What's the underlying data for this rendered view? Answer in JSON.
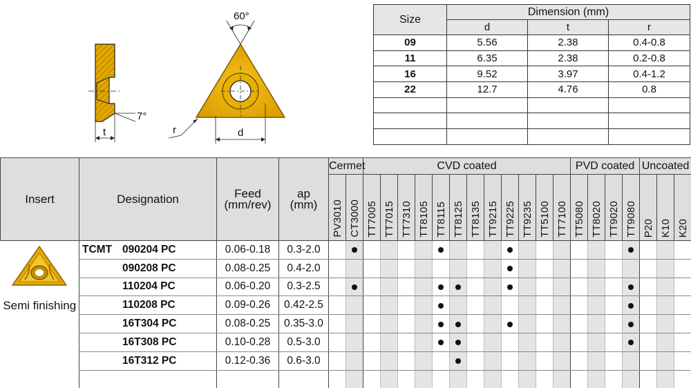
{
  "drawing": {
    "angle_label": "60°",
    "side_angle_label": "7°",
    "t_label": "t",
    "r_label": "r",
    "d_label": "d"
  },
  "dimension_table": {
    "size_header": "Size",
    "dimension_header": "Dimension (mm)",
    "sub_headers": [
      "d",
      "t",
      "r"
    ],
    "rows": [
      {
        "size": "09",
        "d": "5.56",
        "t": "2.38",
        "r": "0.4-0.8"
      },
      {
        "size": "11",
        "d": "6.35",
        "t": "2.38",
        "r": "0.2-0.8"
      },
      {
        "size": "16",
        "d": "9.52",
        "t": "3.97",
        "r": "0.4-1.2"
      },
      {
        "size": "22",
        "d": "12.7",
        "t": "4.76",
        "r": "0.8"
      },
      {
        "size": "",
        "d": "",
        "t": "",
        "r": ""
      },
      {
        "size": "",
        "d": "",
        "t": "",
        "r": ""
      },
      {
        "size": "",
        "d": "",
        "t": "",
        "r": ""
      }
    ]
  },
  "grade_table": {
    "insert_header": "Insert",
    "designation_header": "Designation",
    "feed_header_line1": "Feed",
    "feed_header_line2": "(mm/rev)",
    "ap_header_line1": "ap",
    "ap_header_line2": "(mm)",
    "groups": [
      {
        "name": "Cermet",
        "grades": [
          "PV3010",
          "CT3000"
        ]
      },
      {
        "name": "CVD coated",
        "grades": [
          "TT7005",
          "TT7015",
          "TT7310",
          "TT8105",
          "TT8115",
          "TT8125",
          "TT8135",
          "TT9215",
          "TT9225",
          "TT9235",
          "TT5100",
          "TT7100"
        ]
      },
      {
        "name": "PVD coated",
        "grades": [
          "TT5080",
          "TT8020",
          "TT9020",
          "TT9080"
        ]
      },
      {
        "name": "Uncoated",
        "grades": [
          "P20",
          "K10",
          "K20"
        ]
      }
    ],
    "insert_note": "Semi finishing",
    "series_prefix": "TCMT",
    "rows": [
      {
        "code": "090204 PC",
        "feed": "0.06-0.18",
        "ap": "0.3-2.0",
        "marks": [
          "CT3000",
          "TT8115",
          "TT9225",
          "TT9080"
        ]
      },
      {
        "code": "090208 PC",
        "feed": "0.08-0.25",
        "ap": "0.4-2.0",
        "marks": [
          "TT9225"
        ]
      },
      {
        "code": "110204 PC",
        "feed": "0.06-0.20",
        "ap": "0.3-2.5",
        "marks": [
          "CT3000",
          "TT8115",
          "TT8125",
          "TT9225",
          "TT9080"
        ]
      },
      {
        "code": "110208 PC",
        "feed": "0.09-0.26",
        "ap": "0.42-2.5",
        "marks": [
          "TT8115",
          "TT9080"
        ]
      },
      {
        "code": "16T304 PC",
        "feed": "0.08-0.25",
        "ap": "0.35-3.0",
        "marks": [
          "TT8115",
          "TT8125",
          "TT9225",
          "TT9080"
        ]
      },
      {
        "code": "16T308 PC",
        "feed": "0.10-0.28",
        "ap": "0.5-3.0",
        "marks": [
          "TT8115",
          "TT8125",
          "TT9080"
        ]
      },
      {
        "code": "16T312 PC",
        "feed": "0.12-0.36",
        "ap": "0.6-3.0",
        "marks": [
          "TT8125"
        ]
      },
      {
        "code": "",
        "feed": "",
        "ap": "",
        "marks": []
      },
      {
        "code": "",
        "feed": "",
        "ap": "",
        "marks": []
      }
    ]
  },
  "colors": {
    "insert_gold": "#e0a800",
    "header_gray": "#dedede",
    "stripe_gray": "#e4e4e4"
  }
}
